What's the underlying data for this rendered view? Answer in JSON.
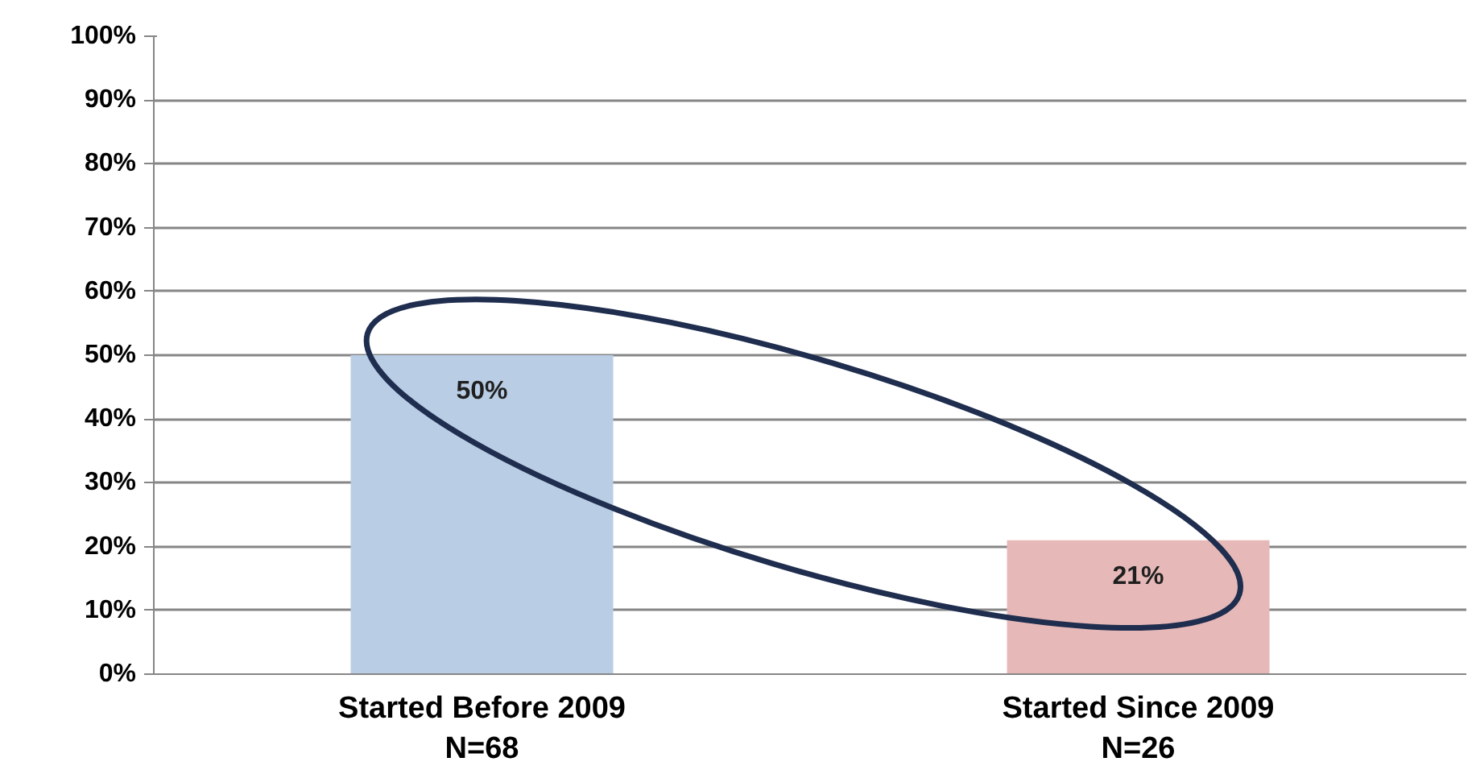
{
  "chart_data": {
    "type": "bar",
    "categories": [
      "Started Before 2009\nN=68",
      "Started Since 2009\nN=26"
    ],
    "values": [
      50,
      21
    ],
    "colors": [
      "#b9cde5",
      "#e6b9b8"
    ],
    "value_labels": [
      "50%",
      "21%"
    ],
    "ylim": [
      0,
      100
    ],
    "yticks": [
      {
        "value": 0,
        "label": "0%"
      },
      {
        "value": 10,
        "label": "10%"
      },
      {
        "value": 20,
        "label": "20%"
      },
      {
        "value": 30,
        "label": "30%"
      },
      {
        "value": 40,
        "label": "40%"
      },
      {
        "value": 50,
        "label": "50%"
      },
      {
        "value": 60,
        "label": "60%"
      },
      {
        "value": 70,
        "label": "70%"
      },
      {
        "value": 80,
        "label": "80%"
      },
      {
        "value": 90,
        "label": "90%"
      },
      {
        "value": 100,
        "label": "100%"
      }
    ],
    "grid": "y"
  }
}
